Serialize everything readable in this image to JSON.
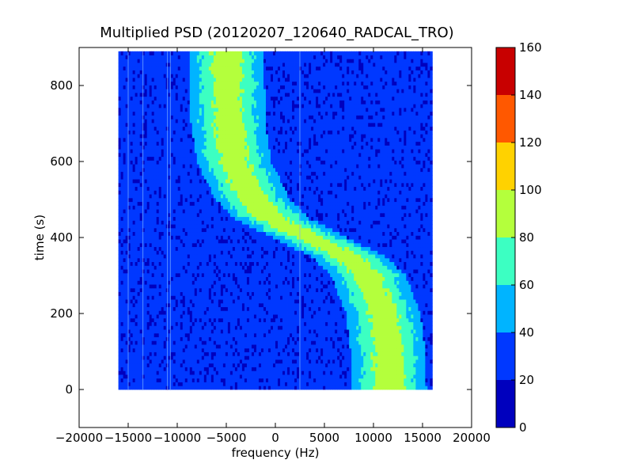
{
  "chart_data": {
    "type": "heatmap",
    "title": "Multiplied PSD (20120207_120640_RADCAL_TRO)",
    "xlabel": "frequency (Hz)",
    "ylabel": "time (s)",
    "xlim": [
      -20000,
      20000
    ],
    "ylim": [
      -100,
      900
    ],
    "x_ticks": [
      -20000,
      -15000,
      -10000,
      -5000,
      0,
      5000,
      10000,
      15000,
      20000
    ],
    "x_tick_labels": [
      "−20000",
      "−15000",
      "−10000",
      "−5000",
      "0",
      "5000",
      "10000",
      "15000",
      "20000"
    ],
    "y_ticks": [
      0,
      200,
      400,
      600,
      800
    ],
    "y_tick_labels": [
      "0",
      "200",
      "400",
      "600",
      "800"
    ],
    "data_extent": {
      "x": [
        -16000,
        16000
      ],
      "y": [
        0,
        890
      ]
    },
    "background_level": 25,
    "signal_track": {
      "description_points_time_s": [
        0,
        100,
        200,
        300,
        350,
        400,
        450,
        500,
        600,
        700,
        800,
        890
      ],
      "center_freq_hz": [
        11600,
        11500,
        11000,
        9500,
        7500,
        3500,
        -300,
        -2300,
        -4200,
        -4800,
        -4900,
        -5000
      ],
      "peak_level": 100
    },
    "vertical_lines_hz": [
      -13500,
      -11000,
      -10700,
      -15000,
      2500
    ],
    "colorbar": {
      "levels": [
        0,
        20,
        40,
        60,
        80,
        100,
        120,
        140,
        160
      ],
      "tick_labels": [
        "0",
        "20",
        "40",
        "60",
        "80",
        "100",
        "120",
        "140",
        "160"
      ],
      "colors": [
        "#0000be",
        "#0038ff",
        "#00b4ff",
        "#3cffc2",
        "#b4ff3c",
        "#ffd200",
        "#ff5800",
        "#c80000"
      ]
    },
    "grid": false,
    "legend": "none"
  }
}
